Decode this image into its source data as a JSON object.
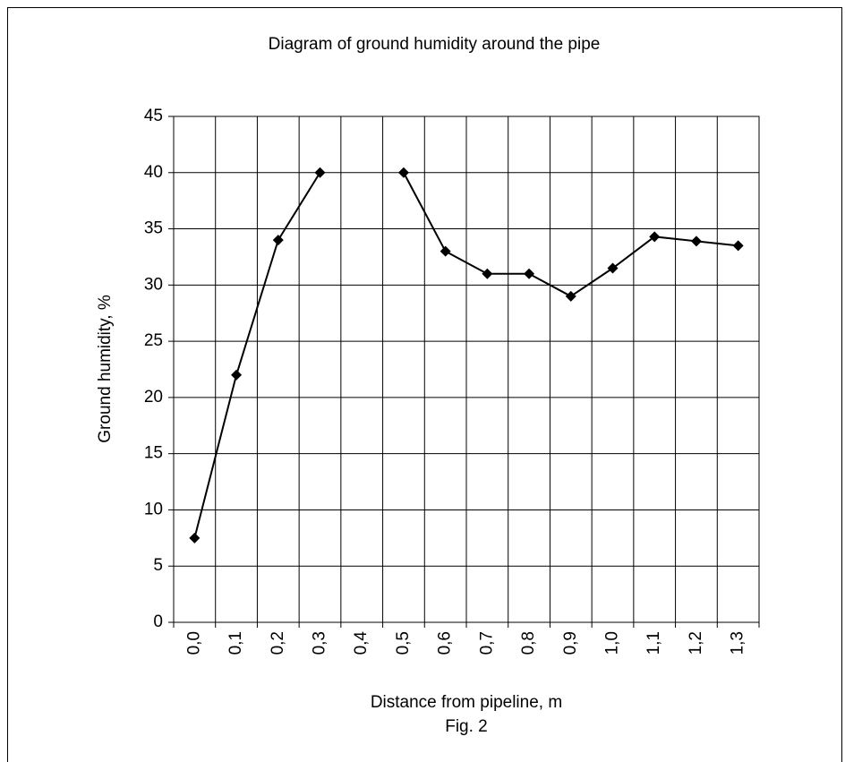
{
  "chart_data": {
    "type": "line",
    "title": "Diagram of ground humidity around the pipe",
    "x_label": "Distance from pipeline, m",
    "caption": "Fig. 2",
    "y_label": "Ground humidity, %",
    "categories": [
      "0,0",
      "0,1",
      "0,2",
      "0,3",
      "0,4",
      "0,5",
      "0,6",
      "0,7",
      "0,8",
      "0,9",
      "1,0",
      "1,1",
      "1,2",
      "1,3"
    ],
    "series": [
      {
        "name": "Ground humidity",
        "color": "#000000",
        "values": [
          7.5,
          22,
          34,
          40,
          null,
          40,
          33,
          31,
          31,
          29,
          31.5,
          34.3,
          33.9,
          33.5
        ]
      }
    ],
    "ylim": [
      0,
      45
    ],
    "yticks": [
      0,
      5,
      10,
      15,
      20,
      25,
      30,
      35,
      40,
      45
    ],
    "grid": true
  }
}
